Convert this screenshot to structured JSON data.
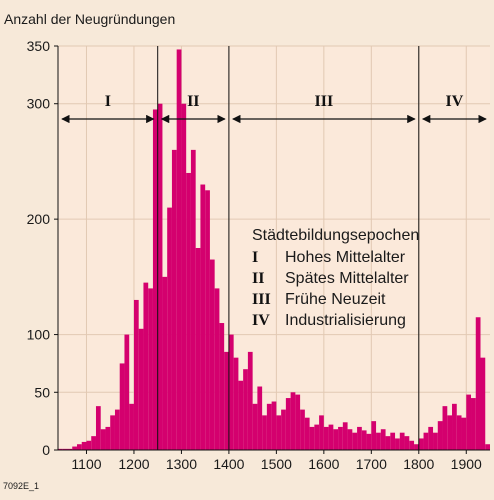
{
  "chart_data": {
    "type": "bar",
    "title": "Anzahl der Neugründungen",
    "xlabel": "",
    "ylabel": "Anzahl der Neugründungen",
    "xlim": [
      1040,
      1950
    ],
    "ylim": [
      0,
      350
    ],
    "bin_width": 10,
    "bar_color": "#d4006e",
    "x_ticks": [
      1100,
      1200,
      1300,
      1400,
      1500,
      1600,
      1700,
      1800,
      1900
    ],
    "x_tick_labels": [
      "1100",
      "1200",
      "1300",
      "1400",
      "1500",
      "1600",
      "1700",
      "1800",
      "1900"
    ],
    "y_tick_labels": [
      {
        "value": 0,
        "label": "0"
      },
      {
        "value": 50,
        "label": "50"
      },
      {
        "value": 100,
        "label": "100"
      },
      {
        "value": 200,
        "label": "200"
      },
      {
        "value": 300,
        "label": "300"
      },
      {
        "value": 350,
        "label": "350"
      }
    ],
    "bars": [
      {
        "x": 1040,
        "value": 1
      },
      {
        "x": 1050,
        "value": 1
      },
      {
        "x": 1060,
        "value": 1
      },
      {
        "x": 1070,
        "value": 3
      },
      {
        "x": 1080,
        "value": 5
      },
      {
        "x": 1090,
        "value": 7
      },
      {
        "x": 1100,
        "value": 8
      },
      {
        "x": 1110,
        "value": 12
      },
      {
        "x": 1120,
        "value": 38
      },
      {
        "x": 1130,
        "value": 18
      },
      {
        "x": 1140,
        "value": 20
      },
      {
        "x": 1150,
        "value": 30
      },
      {
        "x": 1160,
        "value": 35
      },
      {
        "x": 1170,
        "value": 75
      },
      {
        "x": 1180,
        "value": 100
      },
      {
        "x": 1190,
        "value": 40
      },
      {
        "x": 1200,
        "value": 130
      },
      {
        "x": 1210,
        "value": 105
      },
      {
        "x": 1220,
        "value": 145
      },
      {
        "x": 1230,
        "value": 140
      },
      {
        "x": 1240,
        "value": 295
      },
      {
        "x": 1250,
        "value": 300
      },
      {
        "x": 1260,
        "value": 150
      },
      {
        "x": 1270,
        "value": 210
      },
      {
        "x": 1280,
        "value": 260
      },
      {
        "x": 1290,
        "value": 347
      },
      {
        "x": 1300,
        "value": 300
      },
      {
        "x": 1310,
        "value": 240
      },
      {
        "x": 1320,
        "value": 260
      },
      {
        "x": 1330,
        "value": 175
      },
      {
        "x": 1340,
        "value": 230
      },
      {
        "x": 1350,
        "value": 225
      },
      {
        "x": 1360,
        "value": 165
      },
      {
        "x": 1370,
        "value": 140
      },
      {
        "x": 1380,
        "value": 110
      },
      {
        "x": 1390,
        "value": 85
      },
      {
        "x": 1400,
        "value": 100
      },
      {
        "x": 1410,
        "value": 80
      },
      {
        "x": 1420,
        "value": 60
      },
      {
        "x": 1430,
        "value": 70
      },
      {
        "x": 1440,
        "value": 85
      },
      {
        "x": 1450,
        "value": 40
      },
      {
        "x": 1460,
        "value": 55
      },
      {
        "x": 1470,
        "value": 30
      },
      {
        "x": 1480,
        "value": 40
      },
      {
        "x": 1490,
        "value": 42
      },
      {
        "x": 1500,
        "value": 30
      },
      {
        "x": 1510,
        "value": 35
      },
      {
        "x": 1520,
        "value": 45
      },
      {
        "x": 1530,
        "value": 50
      },
      {
        "x": 1540,
        "value": 48
      },
      {
        "x": 1550,
        "value": 35
      },
      {
        "x": 1560,
        "value": 28
      },
      {
        "x": 1570,
        "value": 20
      },
      {
        "x": 1580,
        "value": 22
      },
      {
        "x": 1590,
        "value": 30
      },
      {
        "x": 1600,
        "value": 20
      },
      {
        "x": 1610,
        "value": 22
      },
      {
        "x": 1620,
        "value": 18
      },
      {
        "x": 1630,
        "value": 20
      },
      {
        "x": 1640,
        "value": 24
      },
      {
        "x": 1650,
        "value": 18
      },
      {
        "x": 1660,
        "value": 15
      },
      {
        "x": 1670,
        "value": 20
      },
      {
        "x": 1680,
        "value": 17
      },
      {
        "x": 1690,
        "value": 14
      },
      {
        "x": 1700,
        "value": 25
      },
      {
        "x": 1710,
        "value": 15
      },
      {
        "x": 1720,
        "value": 18
      },
      {
        "x": 1730,
        "value": 12
      },
      {
        "x": 1740,
        "value": 15
      },
      {
        "x": 1750,
        "value": 10
      },
      {
        "x": 1760,
        "value": 15
      },
      {
        "x": 1770,
        "value": 12
      },
      {
        "x": 1780,
        "value": 8
      },
      {
        "x": 1790,
        "value": 5
      },
      {
        "x": 1800,
        "value": 10
      },
      {
        "x": 1810,
        "value": 15
      },
      {
        "x": 1820,
        "value": 20
      },
      {
        "x": 1830,
        "value": 15
      },
      {
        "x": 1840,
        "value": 25
      },
      {
        "x": 1850,
        "value": 38
      },
      {
        "x": 1860,
        "value": 30
      },
      {
        "x": 1870,
        "value": 40
      },
      {
        "x": 1880,
        "value": 30
      },
      {
        "x": 1890,
        "value": 28
      },
      {
        "x": 1900,
        "value": 48
      },
      {
        "x": 1910,
        "value": 45
      },
      {
        "x": 1920,
        "value": 115
      },
      {
        "x": 1930,
        "value": 80
      },
      {
        "x": 1940,
        "value": 5
      }
    ],
    "epoch_dividers": [
      1250,
      1400,
      1800
    ],
    "epochs": [
      {
        "numeral": "I",
        "from": 1040,
        "to": 1250
      },
      {
        "numeral": "II",
        "from": 1250,
        "to": 1400
      },
      {
        "numeral": "III",
        "from": 1400,
        "to": 1800
      },
      {
        "numeral": "IV",
        "from": 1800,
        "to": 1950
      }
    ],
    "legend": {
      "title": "Städtebildungsepochen",
      "placement": "right-center",
      "entries": [
        {
          "numeral": "I",
          "label": "Hohes Mittelalter"
        },
        {
          "numeral": "II",
          "label": "Spätes Mittelalter"
        },
        {
          "numeral": "III",
          "label": "Frühe Neuzeit"
        },
        {
          "numeral": "IV",
          "label": "Industrialisierung"
        }
      ]
    },
    "grid": true
  },
  "figure_code": "7092E_1"
}
